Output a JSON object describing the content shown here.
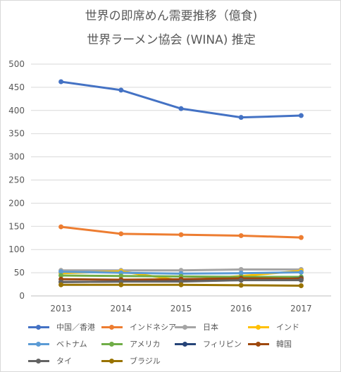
{
  "chart_data": {
    "type": "line",
    "title": "世界の即席めん需要推移（億食)",
    "subtitle": "世界ラーメン協会 (WINA) 推定",
    "categories": [
      "2013",
      "2014",
      "2015",
      "2016",
      "2017"
    ],
    "ylim": [
      0,
      500
    ],
    "yticks": [
      "0",
      "50",
      "100",
      "150",
      "200",
      "250",
      "300",
      "350",
      "400",
      "450",
      "500"
    ],
    "grid": true,
    "legend_position": "bottom",
    "series": [
      {
        "name": "中国／香港",
        "color": "#4472c4",
        "values": [
          462,
          444,
          404,
          385,
          389
        ]
      },
      {
        "name": "インドネシア",
        "color": "#ed7d31",
        "values": [
          149,
          134,
          132,
          130,
          126
        ]
      },
      {
        "name": "日本",
        "color": "#a5a5a5",
        "values": [
          55,
          55,
          55,
          57,
          57
        ]
      },
      {
        "name": "インド",
        "color": "#ffc000",
        "values": [
          49,
          53,
          33,
          43,
          54
        ]
      },
      {
        "name": "ベトナム",
        "color": "#5b9bd5",
        "values": [
          52,
          50,
          48,
          49,
          51
        ]
      },
      {
        "name": "アメリカ",
        "color": "#70ad47",
        "values": [
          44,
          43,
          42,
          41,
          41
        ]
      },
      {
        "name": "フィリピン",
        "color": "#264478",
        "values": [
          30,
          31,
          33,
          34,
          38
        ]
      },
      {
        "name": "韓国",
        "color": "#9e480e",
        "values": [
          36,
          35,
          36,
          38,
          37
        ]
      },
      {
        "name": "タイ",
        "color": "#636363",
        "values": [
          30,
          31,
          31,
          34,
          34
        ]
      },
      {
        "name": "ブラジル",
        "color": "#997300",
        "values": [
          24,
          24,
          24,
          23,
          22
        ]
      }
    ]
  }
}
